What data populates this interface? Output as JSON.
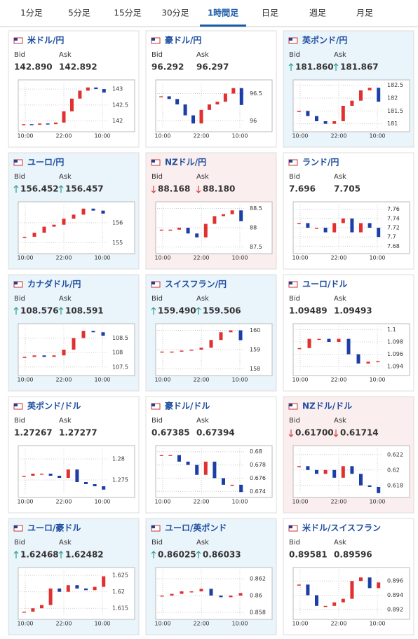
{
  "tabs": [
    "1分足",
    "5分足",
    "15分足",
    "30分足",
    "1時間足",
    "日足",
    "週足",
    "月足"
  ],
  "active_tab": 4,
  "labels": {
    "bid": "Bid",
    "ask": "Ask"
  },
  "xlabels": [
    "10:00",
    "22:00",
    "10:00"
  ],
  "cards": [
    {
      "name": "米ドル/円",
      "bid": "142.890",
      "ask": "142.892",
      "trend": null,
      "chart": {
        "ylim": [
          141.75,
          143.2
        ],
        "yticks": [
          142,
          142.5,
          143
        ],
        "closes": [
          141.9,
          141.88,
          141.92,
          141.9,
          141.95,
          142.3,
          142.7,
          142.95,
          143.05,
          143.0,
          142.89
        ]
      }
    },
    {
      "name": "豪ドル/円",
      "bid": "96.292",
      "ask": "96.297",
      "trend": null,
      "chart": {
        "ylim": [
          95.85,
          96.7
        ],
        "yticks": [
          96,
          96.5
        ],
        "closes": [
          96.45,
          96.4,
          96.3,
          96.1,
          95.95,
          96.2,
          96.3,
          96.35,
          96.5,
          96.6,
          96.29
        ]
      }
    },
    {
      "name": "英ポンド/円",
      "bid": "181.860",
      "ask": "181.867",
      "trend": "up",
      "chart": {
        "ylim": [
          180.8,
          182.6
        ],
        "yticks": [
          181,
          181.5,
          182,
          182.5
        ],
        "closes": [
          181.5,
          181.3,
          181.1,
          181.0,
          181.1,
          181.7,
          181.9,
          182.3,
          182.4,
          181.86
        ]
      }
    },
    {
      "name": "ユーロ/円",
      "bid": "156.452",
      "ask": "156.457",
      "trend": "up",
      "chart": {
        "ylim": [
          154.6,
          156.9
        ],
        "yticks": [
          155,
          156
        ],
        "closes": [
          155.3,
          155.5,
          155.8,
          155.9,
          156.2,
          156.4,
          156.7,
          156.6,
          156.45
        ]
      }
    },
    {
      "name": "NZドル/円",
      "bid": "88.168",
      "ask": "88.180",
      "trend": "down",
      "chart": {
        "ylim": [
          87.4,
          88.6
        ],
        "yticks": [
          87.5,
          88,
          88.5
        ],
        "closes": [
          87.95,
          87.95,
          88.0,
          87.85,
          87.75,
          88.1,
          88.3,
          88.35,
          88.45,
          88.17
        ]
      }
    },
    {
      "name": "ランド/円",
      "bid": "7.696",
      "ask": "7.705",
      "trend": null,
      "chart": {
        "ylim": [
          7.67,
          7.77
        ],
        "yticks": [
          7.68,
          7.7,
          7.72,
          7.74,
          7.76
        ],
        "closes": [
          7.73,
          7.72,
          7.72,
          7.71,
          7.73,
          7.74,
          7.71,
          7.73,
          7.72,
          7.7
        ]
      }
    },
    {
      "name": "カナダドル/円",
      "bid": "108.576",
      "ask": "108.591",
      "trend": "up",
      "chart": {
        "ylim": [
          107.3,
          108.9
        ],
        "yticks": [
          107.5,
          108,
          108.5
        ],
        "closes": [
          107.85,
          107.9,
          107.85,
          107.9,
          108.1,
          108.5,
          108.75,
          108.7,
          108.58
        ]
      }
    },
    {
      "name": "スイスフラン/円",
      "bid": "159.490",
      "ask": "159.506",
      "trend": "up",
      "chart": {
        "ylim": [
          157.8,
          160.2
        ],
        "yticks": [
          158,
          159,
          160
        ],
        "closes": [
          158.9,
          158.9,
          158.95,
          159.0,
          159.1,
          159.5,
          159.9,
          160.0,
          159.49
        ]
      }
    },
    {
      "name": "ユーロ/ドル",
      "bid": "1.09489",
      "ask": "1.09493",
      "trend": null,
      "chart": {
        "ylim": [
          1.093,
          1.1005
        ],
        "yticks": [
          1.094,
          1.096,
          1.098,
          1.1
        ],
        "closes": [
          1.097,
          1.0985,
          1.0985,
          1.098,
          1.0985,
          1.096,
          1.0945,
          1.0948,
          1.0949
        ]
      }
    },
    {
      "name": "英ポンド/ドル",
      "bid": "1.27267",
      "ask": "1.27277",
      "trend": null,
      "chart": {
        "ylim": [
          1.2715,
          1.2825
        ],
        "yticks": [
          1.275,
          1.28
        ],
        "closes": [
          1.276,
          1.2765,
          1.2765,
          1.276,
          1.2755,
          1.2775,
          1.2745,
          1.274,
          1.2735,
          1.2727
        ]
      }
    },
    {
      "name": "豪ドル/ドル",
      "bid": "0.67385",
      "ask": "0.67394",
      "trend": null,
      "chart": {
        "ylim": [
          0.6735,
          0.6805
        ],
        "yticks": [
          0.674,
          0.676,
          0.678,
          0.68
        ],
        "closes": [
          0.6795,
          0.6795,
          0.6785,
          0.678,
          0.6765,
          0.6785,
          0.676,
          0.675,
          0.675,
          0.6739
        ]
      }
    },
    {
      "name": "NZドル/ドル",
      "bid": "0.61700",
      "ask": "0.61714",
      "trend": "down",
      "chart": {
        "ylim": [
          0.6168,
          0.6228
        ],
        "yticks": [
          0.618,
          0.62,
          0.622
        ],
        "closes": [
          0.6205,
          0.62,
          0.6195,
          0.62,
          0.619,
          0.6205,
          0.6195,
          0.618,
          0.6178,
          0.617
        ]
      }
    },
    {
      "name": "ユーロ/豪ドル",
      "bid": "1.62468",
      "ask": "1.62482",
      "trend": "up",
      "chart": {
        "ylim": [
          1.6125,
          1.6265
        ],
        "yticks": [
          1.615,
          1.62,
          1.625
        ],
        "closes": [
          1.614,
          1.615,
          1.616,
          1.621,
          1.62,
          1.622,
          1.621,
          1.6205,
          1.6215,
          1.6247
        ]
      }
    },
    {
      "name": "ユーロ/英ポンド",
      "bid": "0.86025",
      "ask": "0.86033",
      "trend": "up",
      "chart": {
        "ylim": [
          0.8575,
          0.863
        ],
        "yticks": [
          0.858,
          0.86,
          0.862
        ],
        "closes": [
          0.86,
          0.8602,
          0.8605,
          0.8605,
          0.8608,
          0.86,
          0.8598,
          0.86,
          0.8603
        ]
      }
    },
    {
      "name": "米ドル/スイスフラン",
      "bid": "0.89581",
      "ask": "0.89596",
      "trend": null,
      "chart": {
        "ylim": [
          0.891,
          0.8975
        ],
        "yticks": [
          0.892,
          0.894,
          0.896
        ],
        "closes": [
          0.8955,
          0.894,
          0.8925,
          0.8925,
          0.893,
          0.8935,
          0.896,
          0.8965,
          0.895,
          0.8958
        ]
      }
    }
  ]
}
